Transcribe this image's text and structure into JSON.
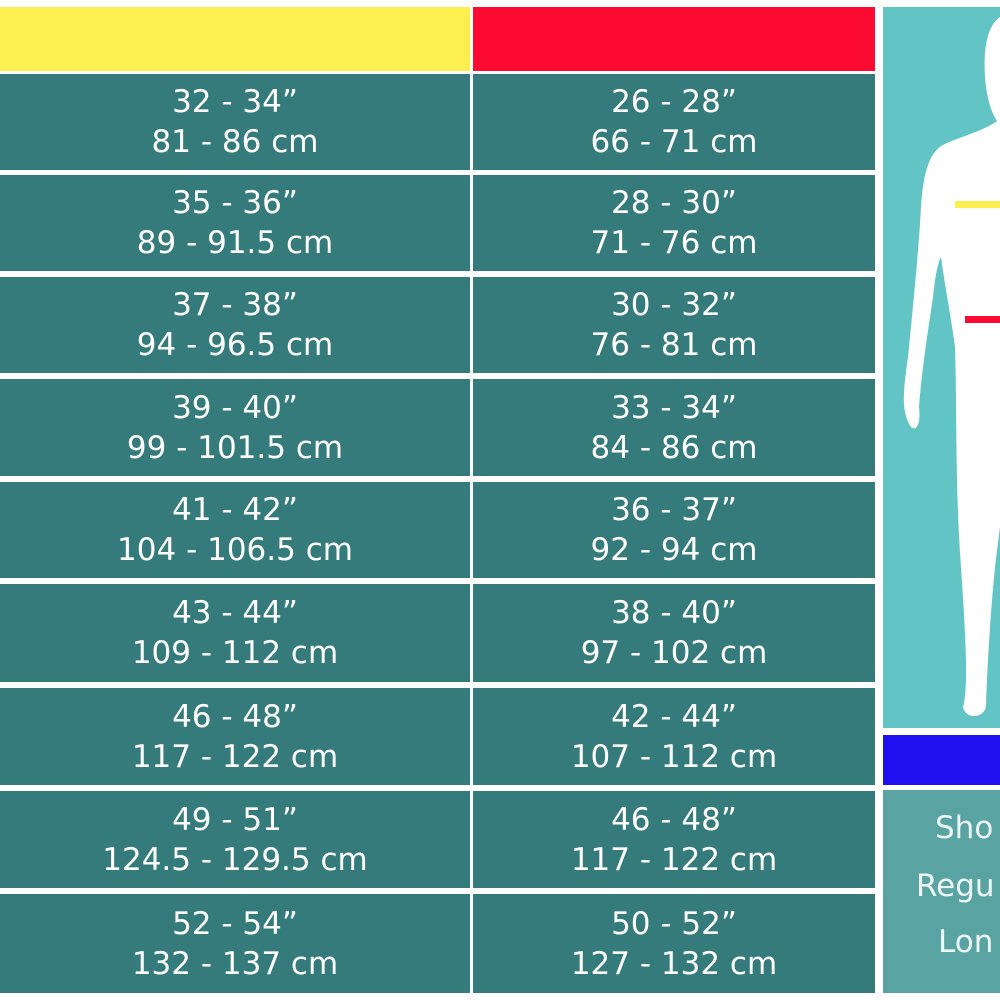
{
  "colors": {
    "chest_header": "#fdef4f",
    "waist_header": "#fb0a31",
    "leg_header": "#2010f0",
    "cell_bg": "#357b7b",
    "figure_bg": "#62c4c4",
    "leg_panel_bg": "#5aa3a3"
  },
  "chest": [
    {
      "in": "32 - 34”",
      "cm": "81 - 86 cm"
    },
    {
      "in": "35 - 36”",
      "cm": "89 - 91.5 cm"
    },
    {
      "in": "37 - 38”",
      "cm": "94 - 96.5 cm"
    },
    {
      "in": "39 - 40”",
      "cm": "99 - 101.5 cm"
    },
    {
      "in": "41 - 42”",
      "cm": "104 - 106.5 cm"
    },
    {
      "in": "43 - 44”",
      "cm": "109 - 112 cm"
    },
    {
      "in": "46 - 48”",
      "cm": "117 - 122 cm"
    },
    {
      "in": "49 - 51”",
      "cm": "124.5 - 129.5 cm"
    },
    {
      "in": "52 - 54”",
      "cm": "132 - 137 cm"
    }
  ],
  "waist": [
    {
      "in": "26 - 28”",
      "cm": "66 - 71 cm"
    },
    {
      "in": "28 - 30”",
      "cm": "71 - 76 cm"
    },
    {
      "in": "30 - 32”",
      "cm": "76 - 81 cm"
    },
    {
      "in": "33 - 34”",
      "cm": "84 - 86 cm"
    },
    {
      "in": "36 - 37”",
      "cm": "92 - 94 cm"
    },
    {
      "in": "38 - 40”",
      "cm": "97 - 102 cm"
    },
    {
      "in": "42 - 44”",
      "cm": "107 - 112 cm"
    },
    {
      "in": "46 - 48”",
      "cm": "117 - 122 cm"
    },
    {
      "in": "50 - 52”",
      "cm": "127 - 132 cm"
    }
  ],
  "leg_lengths": [
    "Sho",
    "Regu",
    "Lon"
  ]
}
